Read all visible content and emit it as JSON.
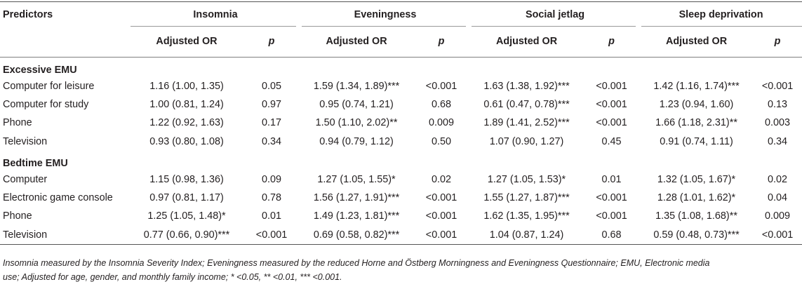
{
  "header": {
    "predictors": "Predictors",
    "groups": [
      "Insomnia",
      "Eveningness",
      "Social jetlag",
      "Sleep deprivation"
    ],
    "or_label": "Adjusted OR",
    "p_label": "p"
  },
  "sections": [
    {
      "title": "Excessive EMU",
      "rows": [
        {
          "label": "Computer for leisure",
          "cells": [
            "1.16 (1.00, 1.35)",
            "0.05",
            "1.59 (1.34, 1.89)***",
            "<0.001",
            "1.63 (1.38, 1.92)***",
            "<0.001",
            "1.42 (1.16, 1.74)***",
            "<0.001"
          ]
        },
        {
          "label": "Computer for study",
          "cells": [
            "1.00 (0.81, 1.24)",
            "0.97",
            "0.95 (0.74, 1.21)",
            "0.68",
            "0.61 (0.47, 0.78)***",
            "<0.001",
            "1.23 (0.94, 1.60)",
            "0.13"
          ]
        },
        {
          "label": "Phone",
          "cells": [
            "1.22 (0.92, 1.63)",
            "0.17",
            "1.50 (1.10, 2.02)**",
            "0.009",
            "1.89 (1.41, 2.52)***",
            "<0.001",
            "1.66 (1.18, 2.31)**",
            "0.003"
          ]
        },
        {
          "label": "Television",
          "cells": [
            "0.93 (0.80, 1.08)",
            "0.34",
            "0.94 (0.79, 1.12)",
            "0.50",
            "1.07 (0.90, 1.27)",
            "0.45",
            "0.91 (0.74, 1.11)",
            "0.34"
          ]
        }
      ]
    },
    {
      "title": "Bedtime EMU",
      "rows": [
        {
          "label": "Computer",
          "cells": [
            "1.15 (0.98, 1.36)",
            "0.09",
            "1.27 (1.05, 1.55)*",
            "0.02",
            "1.27 (1.05, 1.53)*",
            "0.01",
            "1.32 (1.05, 1.67)*",
            "0.02"
          ]
        },
        {
          "label": "Electronic game console",
          "cells": [
            "0.97 (0.81, 1.17)",
            "0.78",
            "1.56 (1.27, 1.91)***",
            "<0.001",
            "1.55 (1.27, 1.87)***",
            "<0.001",
            "1.28 (1.01, 1.62)*",
            "0.04"
          ]
        },
        {
          "label": "Phone",
          "cells": [
            "1.25 (1.05, 1.48)*",
            "0.01",
            "1.49 (1.23, 1.81)***",
            "<0.001",
            "1.62 (1.35, 1.95)***",
            "<0.001",
            "1.35 (1.08, 1.68)**",
            "0.009"
          ]
        },
        {
          "label": "Television",
          "cells": [
            "0.77 (0.66, 0.90)***",
            "<0.001",
            "0.69 (0.58, 0.82)***",
            "<0.001",
            "1.04 (0.87, 1.24)",
            "0.68",
            "0.59 (0.48, 0.73)***",
            "<0.001"
          ]
        }
      ]
    }
  ],
  "footnote": {
    "line1": "Insomnia measured by the Insomnia Severity Index; Eveningness measured by the reduced Horne and Östberg Morningness and Eveningness Questionnaire; EMU, Electronic media",
    "line2": "use; Adjusted for age, gender, and monthly family income; * <0.05, ** <0.01, *** <0.001."
  }
}
